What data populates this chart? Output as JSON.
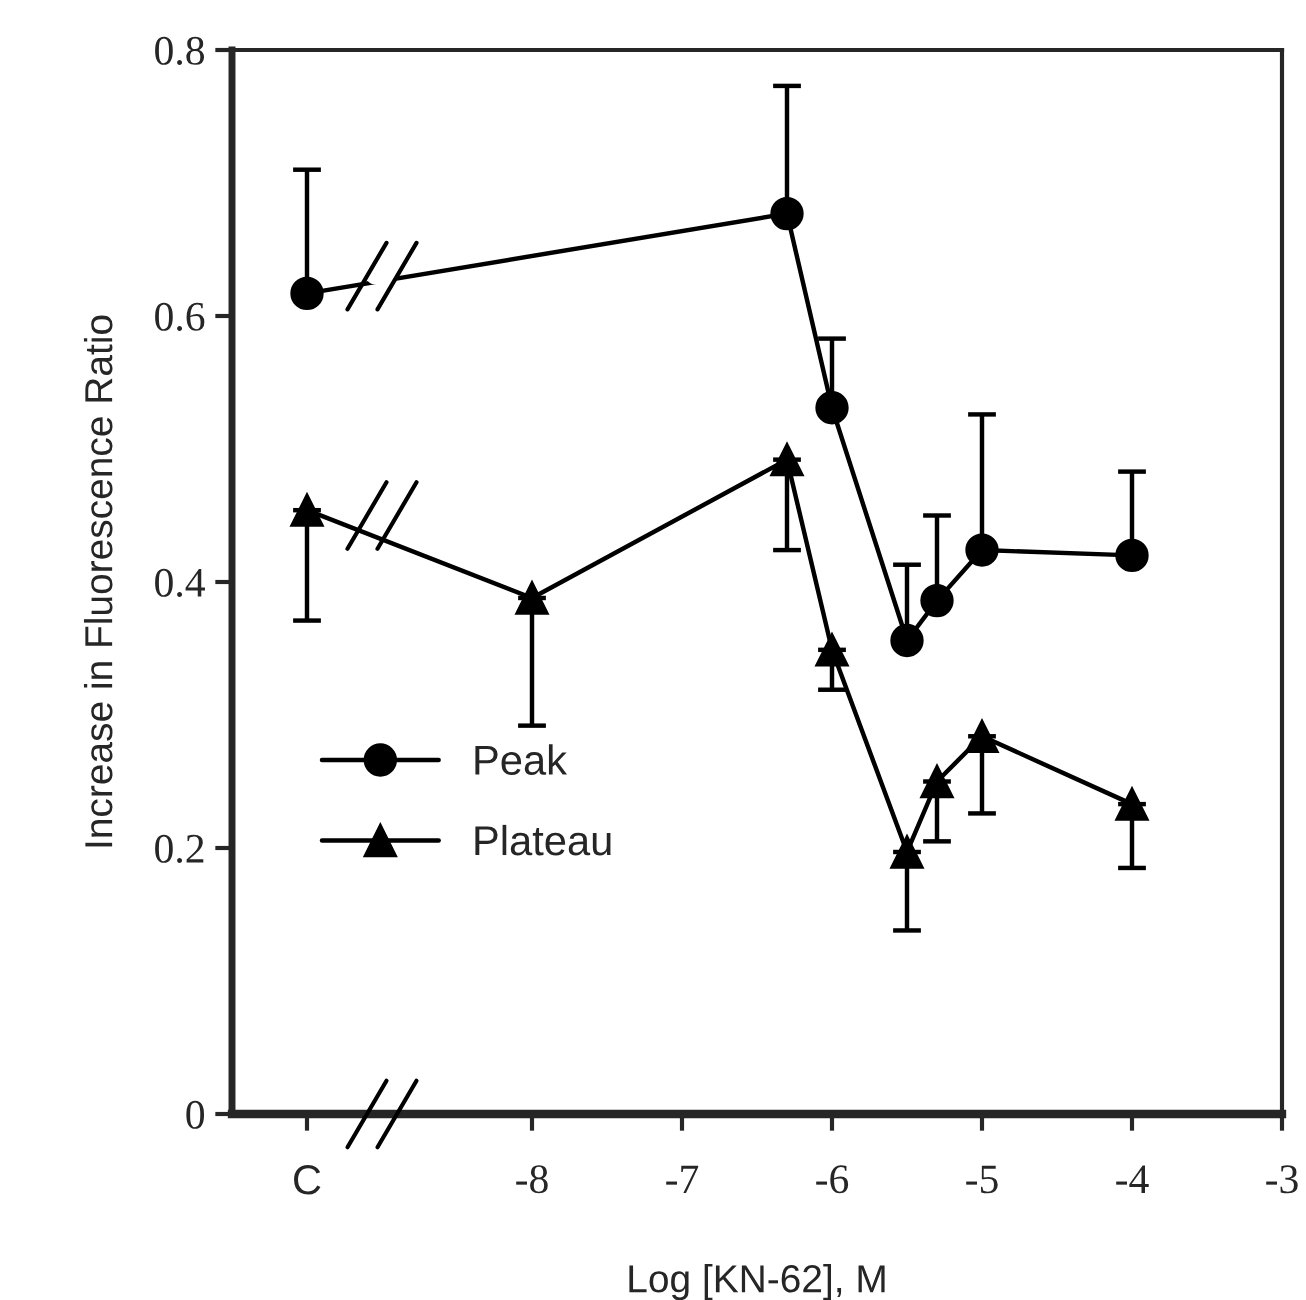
{
  "chart_data": {
    "type": "line",
    "xlabel": "Log [KN-62], M",
    "ylabel": "Increase in Fluorescence Ratio",
    "xlim": [
      -10,
      -3
    ],
    "xticks": [
      {
        "value": -9.5,
        "label": "C"
      },
      -8,
      -7,
      -6,
      -5,
      -4,
      -3
    ],
    "ylim": [
      0,
      0.8
    ],
    "yticks": [
      0,
      0.2,
      0.4,
      0.6,
      0.8
    ],
    "grid": false,
    "legend": "lower left",
    "series": [
      {
        "name": "Peak",
        "color": "#000000",
        "marker": "circle",
        "x": [
          -9.5,
          -6.3,
          -6,
          -5.5,
          -5.3,
          -5,
          -4
        ],
        "values": [
          0.617,
          0.677,
          0.531,
          0.356,
          0.386,
          0.424,
          0.42
        ],
        "errors": [
          [
            0.617,
            0.71
          ],
          [
            0.677,
            0.773
          ],
          [
            0.531,
            0.583
          ],
          [
            0.356,
            0.413
          ],
          [
            0.386,
            0.45
          ],
          [
            0.424,
            0.526
          ],
          [
            0.42,
            0.483
          ]
        ]
      },
      {
        "name": "Plateau",
        "color": "#000000",
        "marker": "triangle",
        "x": [
          -9.5,
          -8,
          -6.3,
          -6,
          -5.5,
          -5.3,
          -5,
          -4
        ],
        "values": [
          0.454,
          0.388,
          0.492,
          0.349,
          0.197,
          0.25,
          0.284,
          0.233
        ],
        "errors": [
          [
            0.371,
            0.454
          ],
          [
            0.292,
            0.388
          ],
          [
            0.424,
            0.492
          ],
          [
            0.319,
            0.349
          ],
          [
            0.138,
            0.197
          ],
          [
            0.205,
            0.25
          ],
          [
            0.226,
            0.284
          ],
          [
            0.185,
            0.233
          ]
        ]
      }
    ]
  }
}
